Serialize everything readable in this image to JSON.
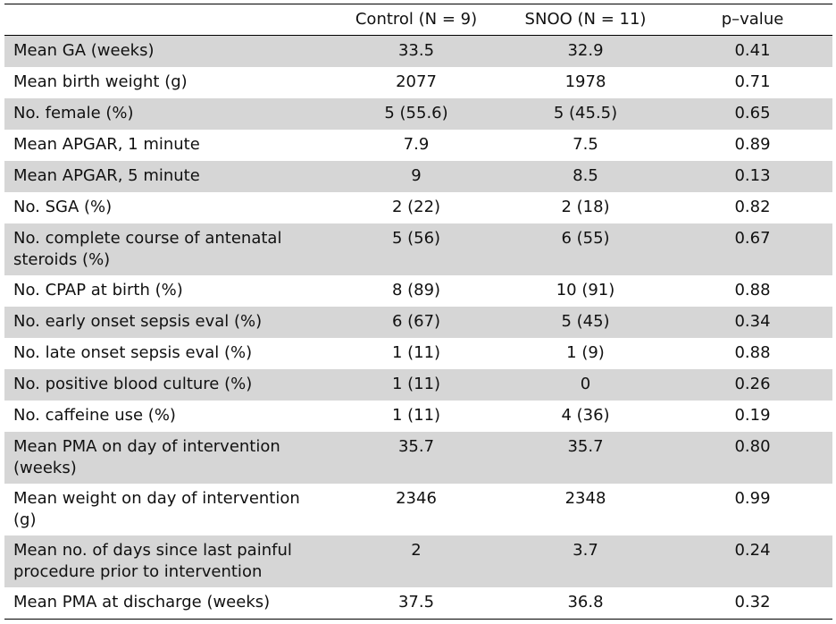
{
  "table": {
    "headers": [
      "",
      "Control (N = 9)",
      "SNOO (N = 11)",
      "p–value"
    ],
    "rows": [
      [
        "Mean GA (weeks)",
        "33.5",
        "32.9",
        "0.41"
      ],
      [
        "Mean birth weight (g)",
        "2077",
        "1978",
        "0.71"
      ],
      [
        "No. female (%)",
        "5 (55.6)",
        "5 (45.5)",
        "0.65"
      ],
      [
        "Mean APGAR, 1 minute",
        "7.9",
        "7.5",
        "0.89"
      ],
      [
        "Mean APGAR, 5 minute",
        "9",
        "8.5",
        "0.13"
      ],
      [
        "No. SGA (%)",
        "2 (22)",
        "2 (18)",
        "0.82"
      ],
      [
        "No. complete course of antenatal steroids (%)",
        "5 (56)",
        "6 (55)",
        "0.67"
      ],
      [
        "No. CPAP at birth (%)",
        "8 (89)",
        "10 (91)",
        "0.88"
      ],
      [
        "No. early onset sepsis eval (%)",
        "6 (67)",
        "5 (45)",
        "0.34"
      ],
      [
        "No. late onset sepsis eval (%)",
        "1 (11)",
        "1 (9)",
        "0.88"
      ],
      [
        "No. positive blood culture (%)",
        "1 (11)",
        "0",
        "0.26"
      ],
      [
        "No. caffeine use (%)",
        "1 (11)",
        "4 (36)",
        "0.19"
      ],
      [
        "Mean PMA on day of intervention (weeks)",
        "35.7",
        "35.7",
        "0.80"
      ],
      [
        "Mean weight on day of intervention (g)",
        "2346",
        "2348",
        "0.99"
      ],
      [
        "Mean no. of days since last painful procedure prior to intervention",
        "2",
        "3.7",
        "0.24"
      ],
      [
        "Mean PMA at discharge (weeks)",
        "37.5",
        "36.8",
        "0.32"
      ]
    ]
  }
}
